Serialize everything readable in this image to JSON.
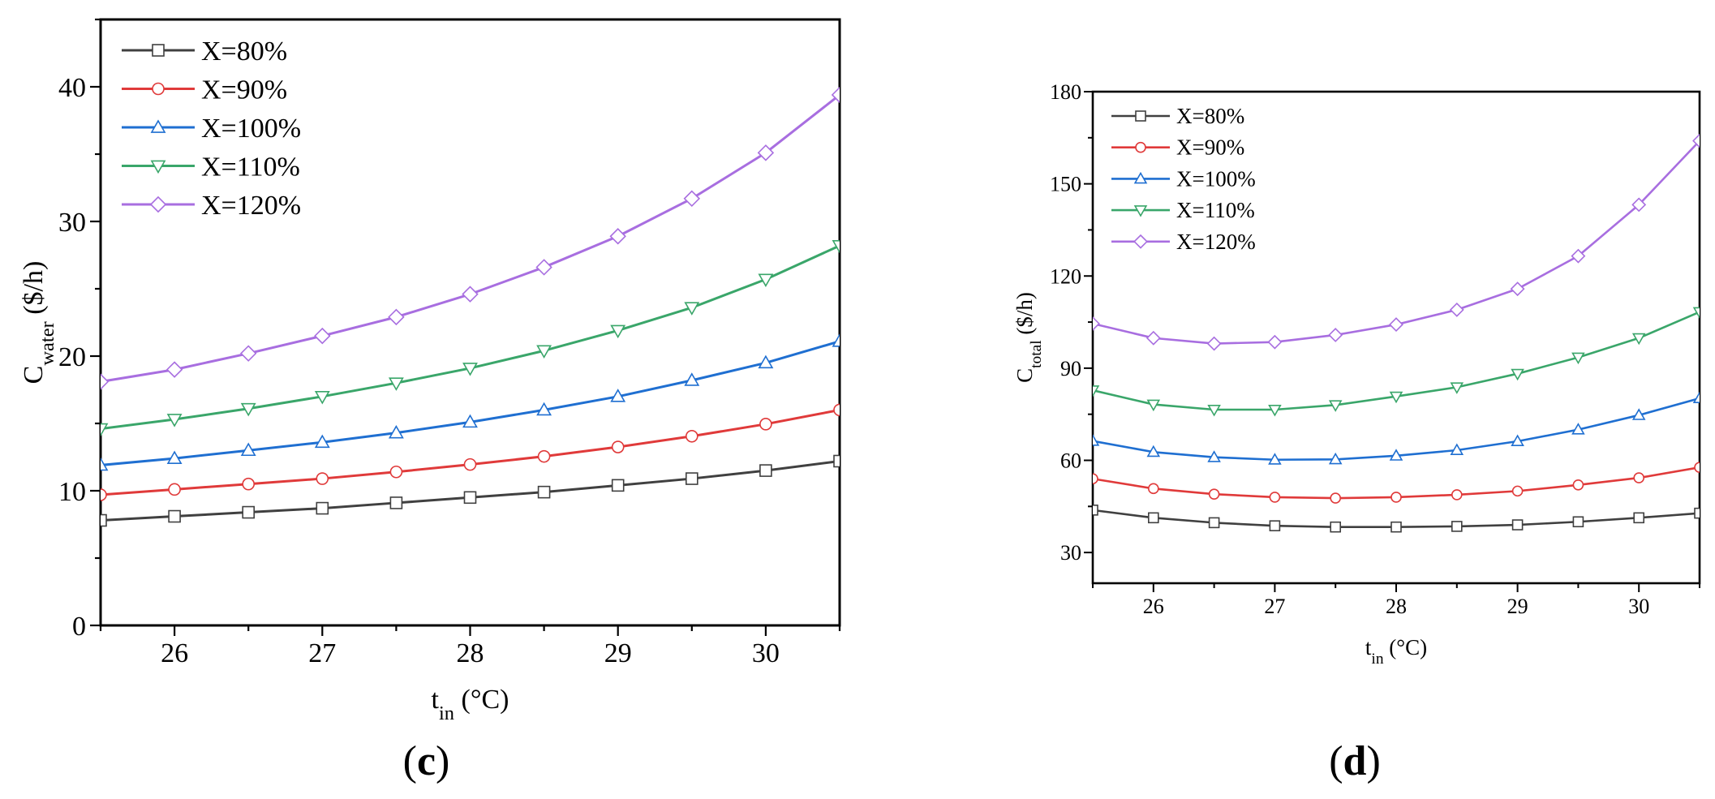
{
  "chart_data": [
    {
      "type": "line",
      "panel_label": "(c)",
      "title": "",
      "xlabel": {
        "main": "t",
        "sub": "in",
        "unit": " (°C)"
      },
      "ylabel": {
        "main": "C",
        "sub": "water",
        "unit": " ($/h)"
      },
      "xlim": [
        25.5,
        30.5
      ],
      "ylim": [
        0,
        45
      ],
      "xticks": [
        26,
        27,
        28,
        29,
        30
      ],
      "yticks": [
        0,
        10,
        20,
        30,
        40
      ],
      "legend_position": "top-left",
      "x": [
        25.5,
        26,
        26.5,
        27,
        27.5,
        28,
        28.5,
        29,
        29.5,
        30,
        30.5
      ],
      "series": [
        {
          "name": "X=80%",
          "color": "#404040",
          "marker": "square",
          "values": [
            7.8,
            8.1,
            8.4,
            8.7,
            9.1,
            9.5,
            9.9,
            10.4,
            10.9,
            11.5,
            12.2
          ]
        },
        {
          "name": "X=90%",
          "color": "#e03a3a",
          "marker": "circle",
          "values": [
            9.7,
            10.1,
            10.5,
            10.9,
            11.4,
            11.95,
            12.55,
            13.25,
            14.05,
            14.95,
            16.0
          ]
        },
        {
          "name": "X=100%",
          "color": "#1f6fd1",
          "marker": "triangle-up",
          "values": [
            11.9,
            12.4,
            13.0,
            13.6,
            14.3,
            15.1,
            16.0,
            17.0,
            18.2,
            19.5,
            21.1
          ]
        },
        {
          "name": "X=110%",
          "color": "#3aa66a",
          "marker": "triangle-down",
          "values": [
            14.6,
            15.3,
            16.1,
            17.0,
            18.0,
            19.1,
            20.4,
            21.9,
            23.6,
            25.7,
            28.2
          ]
        },
        {
          "name": "X=120%",
          "color": "#a86ee0",
          "marker": "diamond",
          "values": [
            18.1,
            19.0,
            20.2,
            21.5,
            22.9,
            24.6,
            26.6,
            28.9,
            31.7,
            35.1,
            39.4
          ]
        }
      ]
    },
    {
      "type": "line",
      "panel_label": "(d)",
      "title": "",
      "xlabel": {
        "main": "t",
        "sub": "in",
        "unit": " (°C)"
      },
      "ylabel": {
        "main": "C",
        "sub": "total",
        "unit": " ($/h)"
      },
      "xlim": [
        25.5,
        30.5
      ],
      "ylim": [
        20,
        180
      ],
      "xticks": [
        26,
        27,
        28,
        29,
        30
      ],
      "yticks": [
        30,
        60,
        90,
        120,
        150,
        180
      ],
      "legend_position": "top-left",
      "x": [
        25.5,
        26,
        26.5,
        27,
        27.5,
        28,
        28.5,
        29,
        29.5,
        30,
        30.5
      ],
      "series": [
        {
          "name": "X=80%",
          "color": "#404040",
          "marker": "square",
          "values": [
            43.8,
            41.3,
            39.7,
            38.7,
            38.3,
            38.3,
            38.5,
            39.0,
            40.0,
            41.3,
            42.8
          ]
        },
        {
          "name": "X=90%",
          "color": "#e03a3a",
          "marker": "circle",
          "values": [
            54.0,
            50.8,
            49.0,
            48.0,
            47.7,
            48.0,
            48.8,
            50.0,
            52.0,
            54.3,
            57.7
          ]
        },
        {
          "name": "X=100%",
          "color": "#1f6fd1",
          "marker": "triangle-up",
          "values": [
            66.3,
            62.7,
            61.0,
            60.2,
            60.3,
            61.5,
            63.3,
            66.2,
            70.0,
            74.7,
            80.2
          ]
        },
        {
          "name": "X=110%",
          "color": "#3aa66a",
          "marker": "triangle-down",
          "values": [
            82.8,
            78.2,
            76.5,
            76.5,
            78.0,
            80.8,
            83.8,
            88.2,
            93.5,
            99.8,
            108.3
          ]
        },
        {
          "name": "X=120%",
          "color": "#a86ee0",
          "marker": "diamond",
          "values": [
            104.5,
            99.8,
            98.0,
            98.5,
            100.8,
            104.2,
            109.0,
            115.8,
            126.5,
            143.2,
            164.0
          ]
        }
      ]
    }
  ]
}
